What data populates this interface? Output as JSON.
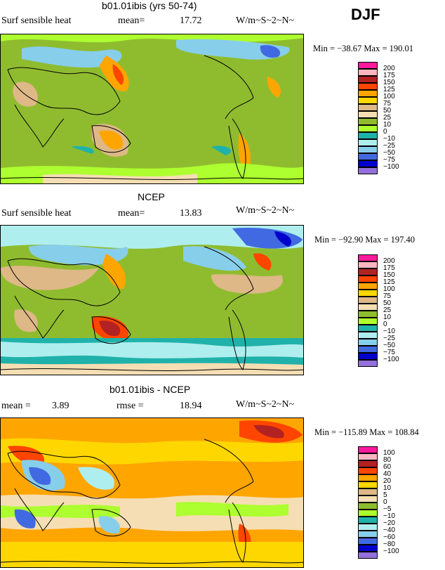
{
  "season": "DJF",
  "panels": [
    {
      "title": "b01.01ibis (yrs 50-74)",
      "left_label": "Surf sensible heat",
      "mid_label": "mean=",
      "mid_value": "17.72",
      "units": "W/m~S~2~N~",
      "minmax": "Min = −38.67 Max = 190.01",
      "legend": [
        {
          "label": "200",
          "color": "#ff1a9c"
        },
        {
          "label": "175",
          "color": "#ffb6c1"
        },
        {
          "label": "150",
          "color": "#b22222"
        },
        {
          "label": "125",
          "color": "#ff4500"
        },
        {
          "label": "100",
          "color": "#ffa500"
        },
        {
          "label": "75",
          "color": "#ffd700"
        },
        {
          "label": "50",
          "color": "#deb887"
        },
        {
          "label": "25",
          "color": "#f5deb3"
        },
        {
          "label": "10",
          "color": "#8fbc2f"
        },
        {
          "label": "0",
          "color": "#adff2f"
        },
        {
          "label": "−10",
          "color": "#20b2aa"
        },
        {
          "label": "−25",
          "color": "#afeeee"
        },
        {
          "label": "−50",
          "color": "#87ceeb"
        },
        {
          "label": "−75",
          "color": "#4169e1"
        },
        {
          "label": "−100",
          "color": "#0000cd"
        },
        {
          "label": "",
          "color": "#9370db"
        }
      ]
    },
    {
      "title": "NCEP",
      "left_label": "Surf sensible heat",
      "mid_label": "mean=",
      "mid_value": "13.83",
      "units": "W/m~S~2~N~",
      "minmax": "Min = −92.90 Max = 197.40",
      "legend": [
        {
          "label": "200",
          "color": "#ff1a9c"
        },
        {
          "label": "175",
          "color": "#ffb6c1"
        },
        {
          "label": "150",
          "color": "#b22222"
        },
        {
          "label": "125",
          "color": "#ff4500"
        },
        {
          "label": "100",
          "color": "#ffa500"
        },
        {
          "label": "75",
          "color": "#ffd700"
        },
        {
          "label": "50",
          "color": "#deb887"
        },
        {
          "label": "25",
          "color": "#f5deb3"
        },
        {
          "label": "10",
          "color": "#8fbc2f"
        },
        {
          "label": "0",
          "color": "#adff2f"
        },
        {
          "label": "−10",
          "color": "#20b2aa"
        },
        {
          "label": "−25",
          "color": "#afeeee"
        },
        {
          "label": "−50",
          "color": "#87ceeb"
        },
        {
          "label": "−75",
          "color": "#4169e1"
        },
        {
          "label": "−100",
          "color": "#0000cd"
        },
        {
          "label": "",
          "color": "#9370db"
        }
      ]
    },
    {
      "title": "b01.01ibis - NCEP",
      "left_label": "mean =",
      "left_value": "3.89",
      "mid_label": "rmse =",
      "mid_value": "18.94",
      "units": "W/m~S~2~N~",
      "minmax": "Min = −115.89 Max = 108.84",
      "legend": [
        {
          "label": "100",
          "color": "#ff1a9c"
        },
        {
          "label": "80",
          "color": "#ffb6c1"
        },
        {
          "label": "60",
          "color": "#b22222"
        },
        {
          "label": "40",
          "color": "#ff4500"
        },
        {
          "label": "20",
          "color": "#ffa500"
        },
        {
          "label": "10",
          "color": "#ffd700"
        },
        {
          "label": "5",
          "color": "#deb887"
        },
        {
          "label": "0",
          "color": "#f5deb3"
        },
        {
          "label": "−5",
          "color": "#8fbc2f"
        },
        {
          "label": "−10",
          "color": "#adff2f"
        },
        {
          "label": "−20",
          "color": "#20b2aa"
        },
        {
          "label": "−40",
          "color": "#afeeee"
        },
        {
          "label": "−60",
          "color": "#87ceeb"
        },
        {
          "label": "−80",
          "color": "#4169e1"
        },
        {
          "label": "−100",
          "color": "#0000cd"
        },
        {
          "label": "",
          "color": "#9370db"
        }
      ]
    }
  ]
}
